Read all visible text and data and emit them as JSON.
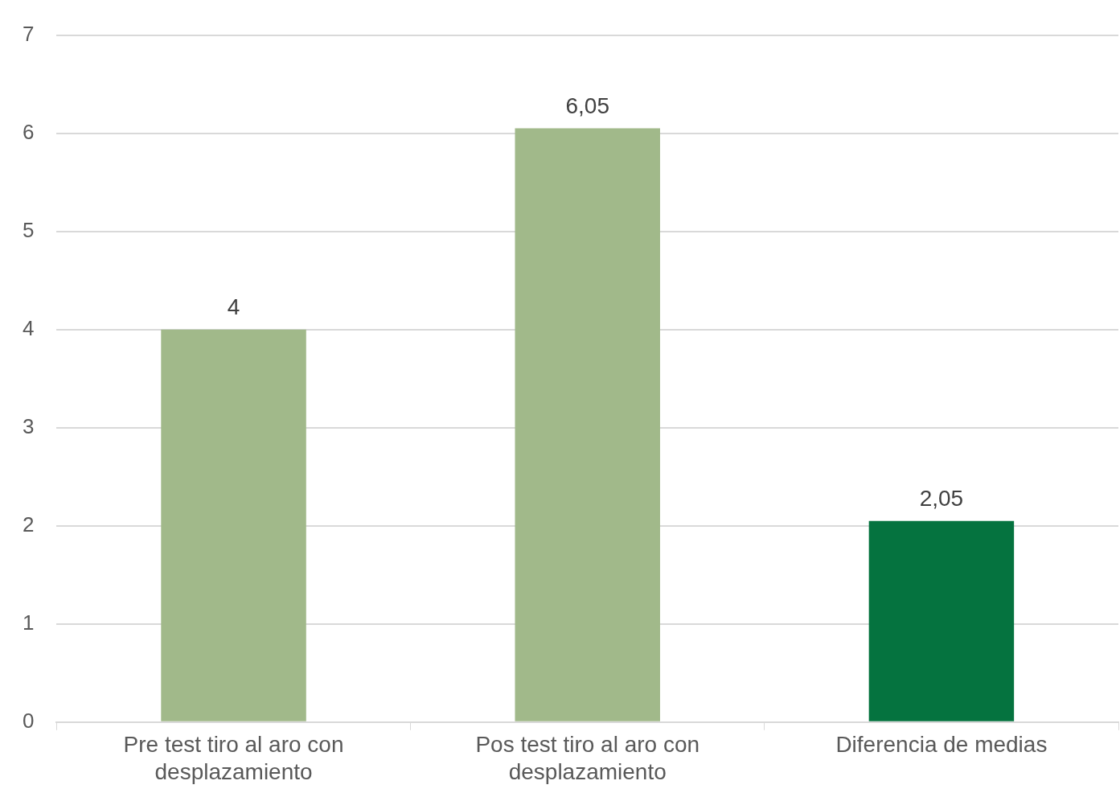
{
  "chart_data": {
    "type": "bar",
    "categories": [
      "Pre test tiro al aro con desplazamiento",
      "Pos test tiro al aro con desplazamiento",
      "Diferencia de medias"
    ],
    "values": [
      4,
      6.05,
      2.05
    ],
    "colors": [
      "#a1b98a",
      "#a1b98a",
      "#05733f"
    ],
    "value_labels": [
      "4",
      "6,05",
      "2,05"
    ],
    "ylim": [
      0,
      7
    ],
    "yticks": [
      0,
      1,
      2,
      3,
      4,
      5,
      6,
      7
    ],
    "grid": "y",
    "legend": false
  }
}
